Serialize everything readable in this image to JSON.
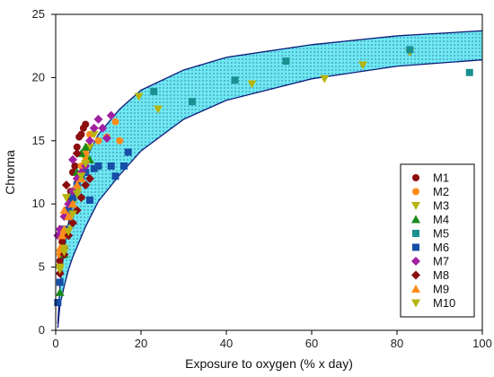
{
  "chart_data": {
    "type": "scatter",
    "title": "",
    "xlabel": "Exposure to oxygen (% x day)",
    "ylabel": "Chroma",
    "xlim": [
      0,
      100
    ],
    "ylim": [
      0,
      25
    ],
    "xticks": [
      0,
      20,
      40,
      60,
      80,
      100
    ],
    "yticks": [
      0,
      5,
      10,
      15,
      20,
      25
    ],
    "grid": false,
    "legend_position": "bottom-right",
    "band": {
      "description": "shaded confidence band",
      "fill_color": "#6ee9f4",
      "upper": [
        [
          0.5,
          0.5
        ],
        [
          1,
          3.5
        ],
        [
          2,
          6.5
        ],
        [
          3,
          8.5
        ],
        [
          4,
          10.0
        ],
        [
          5,
          11.5
        ],
        [
          7,
          13.5
        ],
        [
          10,
          15.5
        ],
        [
          15,
          17.5
        ],
        [
          20,
          19.0
        ],
        [
          30,
          20.6
        ],
        [
          40,
          21.6
        ],
        [
          60,
          22.6
        ],
        [
          80,
          23.3
        ],
        [
          100,
          23.7
        ]
      ],
      "lower": [
        [
          0.5,
          0.2
        ],
        [
          1,
          2.0
        ],
        [
          2,
          3.5
        ],
        [
          3,
          4.8
        ],
        [
          4,
          5.8
        ],
        [
          5,
          6.6
        ],
        [
          7,
          8.2
        ],
        [
          10,
          10.2
        ],
        [
          15,
          12.3
        ],
        [
          20,
          14.2
        ],
        [
          30,
          16.7
        ],
        [
          40,
          18.2
        ],
        [
          60,
          19.9
        ],
        [
          80,
          20.9
        ],
        [
          100,
          21.4
        ]
      ]
    },
    "series": [
      {
        "name": "M1",
        "marker": "circle",
        "color": "#8b0d0d",
        "points": [
          [
            1,
            5.5
          ],
          [
            1.5,
            7
          ],
          [
            2,
            8
          ],
          [
            2.5,
            9.5
          ],
          [
            3,
            10.5
          ],
          [
            3.5,
            11
          ],
          [
            4,
            12.5
          ],
          [
            4.5,
            13
          ],
          [
            5,
            14.5
          ],
          [
            5.5,
            15.3
          ],
          [
            6,
            15.5
          ],
          [
            6.5,
            16
          ],
          [
            7,
            16.3
          ],
          [
            3,
            9
          ],
          [
            2,
            6.5
          ]
        ]
      },
      {
        "name": "M2",
        "marker": "circle",
        "color": "#ff8c1a",
        "points": [
          [
            1,
            6
          ],
          [
            2,
            7.5
          ],
          [
            3,
            9
          ],
          [
            4,
            11
          ],
          [
            5,
            12
          ],
          [
            6,
            13
          ],
          [
            7,
            14
          ],
          [
            8,
            15.5
          ],
          [
            10,
            15
          ],
          [
            12,
            15.3
          ],
          [
            14,
            16.5
          ],
          [
            15,
            15
          ]
        ]
      },
      {
        "name": "M3",
        "marker": "triangle-down",
        "color": "#b5b50f",
        "points": [
          [
            1,
            5
          ],
          [
            2,
            6.5
          ],
          [
            3,
            8
          ],
          [
            4,
            10
          ],
          [
            5,
            11
          ],
          [
            6,
            12
          ],
          [
            7,
            13.5
          ],
          [
            8,
            14.5
          ],
          [
            9,
            15.5
          ],
          [
            19.5,
            18.5
          ],
          [
            24,
            17.5
          ],
          [
            46,
            19.5
          ],
          [
            63,
            19.9
          ],
          [
            72,
            21
          ],
          [
            83,
            22
          ]
        ]
      },
      {
        "name": "M4",
        "marker": "triangle-up",
        "color": "#1a8a1a",
        "points": [
          [
            1,
            3
          ],
          [
            2,
            6
          ],
          [
            3,
            9
          ],
          [
            4,
            11
          ],
          [
            5,
            12.5
          ],
          [
            6,
            14
          ],
          [
            7,
            14.5
          ],
          [
            8,
            13.5
          ],
          [
            3.5,
            10
          ]
        ]
      },
      {
        "name": "M5",
        "marker": "square",
        "color": "#1a9090",
        "points": [
          [
            23,
            18.9
          ],
          [
            32,
            18.1
          ],
          [
            42,
            19.8
          ],
          [
            54,
            21.3
          ],
          [
            83,
            22.2
          ],
          [
            97,
            20.4
          ]
        ]
      },
      {
        "name": "M6",
        "marker": "square",
        "color": "#174ea6",
        "points": [
          [
            0.5,
            2.2
          ],
          [
            1,
            3.8
          ],
          [
            2,
            8
          ],
          [
            3,
            9.5
          ],
          [
            4,
            10.5
          ],
          [
            5,
            11.5
          ],
          [
            6,
            12
          ],
          [
            7,
            12.5
          ],
          [
            8,
            10.3
          ],
          [
            9,
            12.8
          ],
          [
            10,
            13
          ],
          [
            13,
            13
          ],
          [
            14,
            12.2
          ],
          [
            16,
            13
          ],
          [
            17,
            14.1
          ]
        ]
      },
      {
        "name": "M7",
        "marker": "diamond",
        "color": "#a020a0",
        "points": [
          [
            0.5,
            7.5
          ],
          [
            1,
            8
          ],
          [
            2,
            9
          ],
          [
            3,
            10
          ],
          [
            4,
            11
          ],
          [
            5,
            12
          ],
          [
            6,
            12.5
          ],
          [
            7,
            13
          ],
          [
            8,
            15
          ],
          [
            9,
            16
          ],
          [
            10,
            16.7
          ],
          [
            11,
            16
          ],
          [
            12,
            15.2
          ],
          [
            13,
            17
          ],
          [
            4,
            13.5
          ]
        ]
      },
      {
        "name": "M8",
        "marker": "diamond",
        "color": "#8b0d0d",
        "points": [
          [
            1,
            4.5
          ],
          [
            2,
            6
          ],
          [
            3,
            7.5
          ],
          [
            4,
            8.5
          ],
          [
            5,
            9.5
          ],
          [
            6,
            10.5
          ],
          [
            7,
            11.5
          ],
          [
            8,
            12
          ],
          [
            5,
            14
          ],
          [
            2.5,
            11.5
          ]
        ]
      },
      {
        "name": "M9",
        "marker": "triangle-up",
        "color": "#ff8c1a",
        "points": [
          [
            1,
            6.5
          ],
          [
            2,
            8
          ],
          [
            3,
            9
          ],
          [
            4,
            10
          ],
          [
            5,
            11.5
          ],
          [
            6,
            12
          ],
          [
            7,
            13.5
          ],
          [
            2,
            9.5
          ],
          [
            1.5,
            7.5
          ]
        ]
      },
      {
        "name": "M10",
        "marker": "triangle-down",
        "color": "#b5b50f",
        "points": [
          [
            1,
            4.8
          ],
          [
            2,
            6.2
          ],
          [
            3,
            7.8
          ],
          [
            4,
            9.2
          ],
          [
            5,
            10.8
          ],
          [
            6,
            12.2
          ],
          [
            7,
            13.2
          ],
          [
            2.5,
            10.5
          ]
        ]
      }
    ]
  }
}
